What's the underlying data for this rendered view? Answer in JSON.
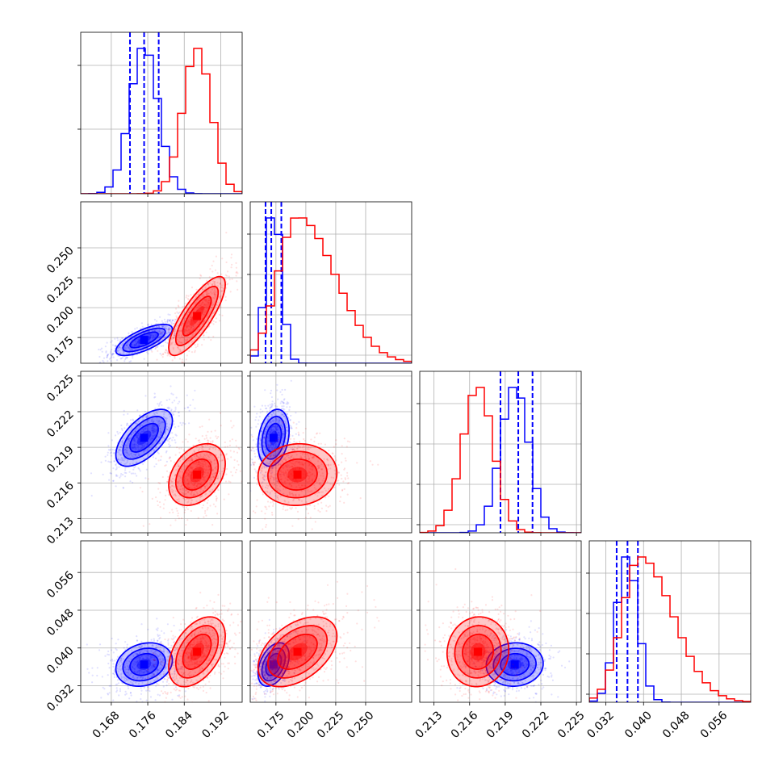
{
  "chart_data": {
    "type": "corner",
    "grid": true,
    "colors": {
      "blue": "#0000ff",
      "red": "#ff0000"
    },
    "x_ticks": [
      [
        "0.168",
        "0.176",
        "0.184",
        "0.192"
      ],
      [
        "0.175",
        "0.200",
        "0.225",
        "0.250"
      ],
      [
        "0.213",
        "0.216",
        "0.219",
        "0.222",
        "0.225"
      ],
      [
        "0.032",
        "0.040",
        "0.048",
        "0.056"
      ]
    ],
    "y_ticks": [
      [],
      [
        "0.175",
        "0.200",
        "0.225",
        "0.250"
      ],
      [
        "0.213",
        "0.216",
        "0.219",
        "0.222",
        "0.225"
      ],
      [
        "0.032",
        "0.040",
        "0.048",
        "0.056"
      ]
    ],
    "series": [
      {
        "color": "blue",
        "centers": [
          0.1752,
          0.173,
          0.2198,
          0.0365
        ],
        "sds": [
          0.0031,
          0.0065,
          0.0012,
          0.0023
        ],
        "quantile_lines": [
          [
            0.1721,
            0.1752,
            0.1784
          ],
          [
            0.1663,
            0.1711,
            0.1795
          ],
          [
            0.2186,
            0.2201,
            0.2213
          ],
          [
            0.0343,
            0.0366,
            0.0388
          ]
        ],
        "correlations": {
          "1-0": 0.7,
          "2-0": 0.6,
          "3-0": 0.2,
          "2-1": 0.25,
          "3-1": 0.4,
          "3-2": 0.05
        }
      },
      {
        "color": "red",
        "centers": [
          0.1868,
          0.193,
          0.2167,
          0.0392
        ],
        "sds": [
          0.0031,
          0.0165,
          0.0013,
          0.0037
        ],
        "correlations": {
          "1-0": 0.8,
          "2-0": 0.35,
          "3-0": 0.45,
          "2-1": 0.05,
          "3-1": 0.45,
          "3-2": 0.05
        }
      }
    ]
  }
}
